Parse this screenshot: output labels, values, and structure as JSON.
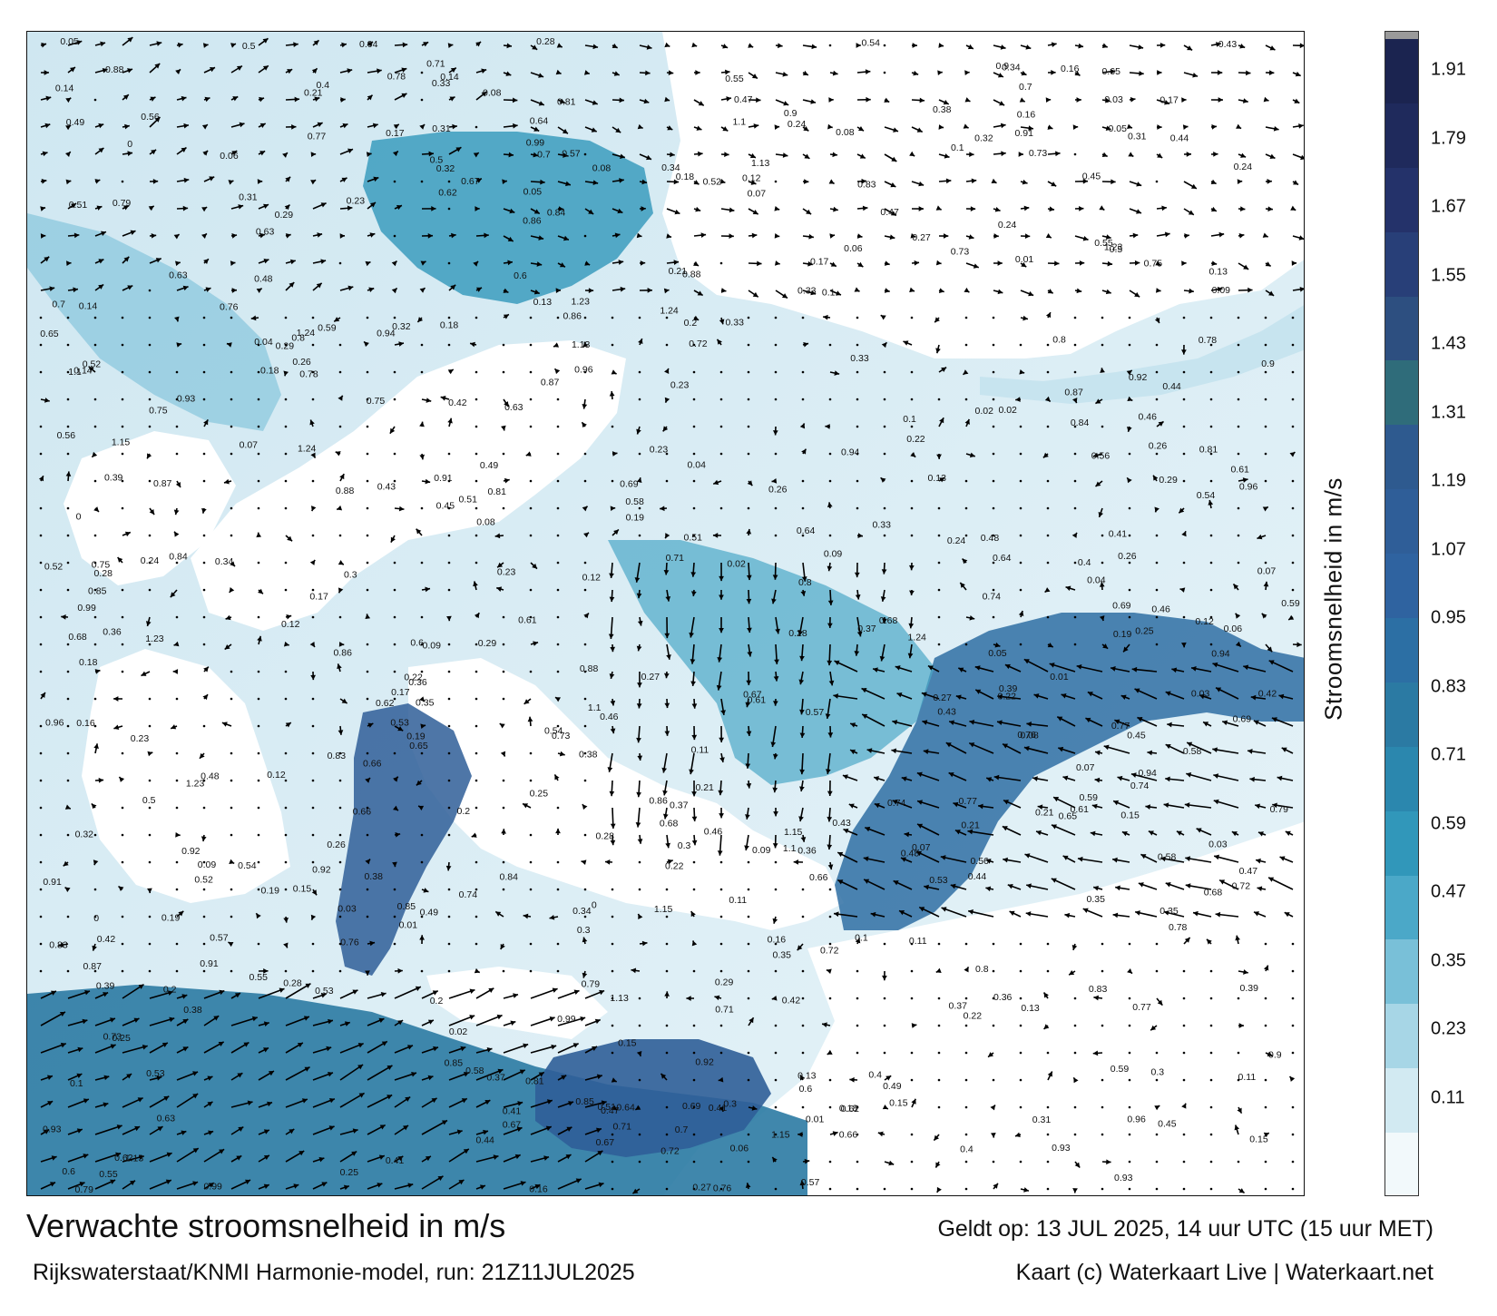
{
  "map": {
    "title": "Verwachte stroomsnelheid in m/s",
    "model_run": "Rijkswaterstaat/KNMI Harmonie-model, run: 21Z11JUL2025",
    "valid_time": "Geldt op: 13 JUL 2025, 14 uur UTC (15 uur MET)",
    "credit": "Kaart (c) Waterkaart Live | Waterkaart.net",
    "colors": {
      "land": "#ffffff",
      "arrows": "#000000",
      "shallow_water": "#cfe7f1",
      "strong_current": "#2f5e98"
    }
  },
  "legend": {
    "label": "Stroomsnelheid in m/s",
    "ticks": [
      "0.11",
      "0.23",
      "0.35",
      "0.47",
      "0.59",
      "0.71",
      "0.83",
      "0.95",
      "1.07",
      "1.19",
      "1.31",
      "1.43",
      "1.55",
      "1.67",
      "1.79",
      "1.91"
    ],
    "colors": [
      "#f2f9fb",
      "#d2eaf2",
      "#a7d6e6",
      "#79c0d8",
      "#4ba8c8",
      "#3197ba",
      "#2b87ae",
      "#2b7aa3",
      "#2c6fa4",
      "#2f63a0",
      "#2f5e98",
      "#2e5a8f",
      "#2f6c7a",
      "#2d4f80",
      "#283f78",
      "#24326a",
      "#1f2a5c",
      "#1b2450"
    ]
  },
  "labels": [
    {
      "v": "0.16"
    },
    {
      "v": "0.17"
    },
    {
      "v": "0.12"
    },
    {
      "v": "0.23"
    },
    {
      "v": "0.28"
    },
    {
      "v": "0.15"
    },
    {
      "v": "0.13"
    },
    {
      "v": "0.18"
    },
    {
      "v": "0.09"
    },
    {
      "v": "0.24"
    },
    {
      "v": "0.22"
    },
    {
      "v": "0.29"
    },
    {
      "v": "0.33"
    },
    {
      "v": "0.3"
    },
    {
      "v": "0.26"
    },
    {
      "v": "0.08"
    },
    {
      "v": "0.07"
    },
    {
      "v": "0.1"
    },
    {
      "v": "0.21"
    },
    {
      "v": "0.19"
    },
    {
      "v": "0.14"
    },
    {
      "v": "0.27"
    },
    {
      "v": "0.25"
    },
    {
      "v": "0.31"
    },
    {
      "v": "0.32"
    },
    {
      "v": "0.44"
    },
    {
      "v": "0.45"
    },
    {
      "v": "0.6"
    },
    {
      "v": "0.5"
    },
    {
      "v": "0.55"
    },
    {
      "v": "0.58"
    },
    {
      "v": "0.41"
    },
    {
      "v": "0.38"
    },
    {
      "v": "0.04"
    },
    {
      "v": "0.05"
    },
    {
      "v": "0.06"
    },
    {
      "v": "0.03"
    },
    {
      "v": "0.02"
    },
    {
      "v": "0.01"
    },
    {
      "v": "0"
    },
    {
      "v": "0.11"
    },
    {
      "v": "0.87"
    },
    {
      "v": "0.64"
    },
    {
      "v": "0.96"
    },
    {
      "v": "0.53"
    },
    {
      "v": "0.75"
    },
    {
      "v": "0.69"
    },
    {
      "v": "0.78"
    },
    {
      "v": "0.77"
    },
    {
      "v": "0.91"
    },
    {
      "v": "0.73"
    },
    {
      "v": "0.81"
    },
    {
      "v": "0.88"
    },
    {
      "v": "0.94"
    },
    {
      "v": "0.85"
    },
    {
      "v": "0.79"
    },
    {
      "v": "0.66"
    },
    {
      "v": "0.86"
    },
    {
      "v": "0.68"
    },
    {
      "v": "0.42"
    },
    {
      "v": "0.39"
    },
    {
      "v": "0.37"
    },
    {
      "v": "0.35"
    },
    {
      "v": "0.36"
    },
    {
      "v": "0.34"
    },
    {
      "v": "0.47"
    },
    {
      "v": "0.46"
    },
    {
      "v": "0.49"
    },
    {
      "v": "0.48"
    },
    {
      "v": "0.52"
    },
    {
      "v": "0.51"
    },
    {
      "v": "0.62"
    },
    {
      "v": "0.72"
    },
    {
      "v": "0.76"
    },
    {
      "v": "0.99"
    },
    {
      "v": "1.15"
    },
    {
      "v": "0.84"
    },
    {
      "v": "0.83"
    },
    {
      "v": "0.74"
    },
    {
      "v": "0.65"
    },
    {
      "v": "0.63"
    },
    {
      "v": "0.57"
    },
    {
      "v": "0.56"
    },
    {
      "v": "0.59"
    },
    {
      "v": "0.54"
    },
    {
      "v": "0.43"
    },
    {
      "v": "0.4"
    },
    {
      "v": "0.2"
    },
    {
      "v": "0.71"
    },
    {
      "v": "0.7"
    },
    {
      "v": "0.67"
    },
    {
      "v": "0.61"
    },
    {
      "v": "0.8"
    },
    {
      "v": "0.9"
    },
    {
      "v": "0.92"
    },
    {
      "v": "0.93"
    },
    {
      "v": "1.1"
    },
    {
      "v": "1.23"
    },
    {
      "v": "1.24"
    },
    {
      "v": "1.13"
    }
  ]
}
